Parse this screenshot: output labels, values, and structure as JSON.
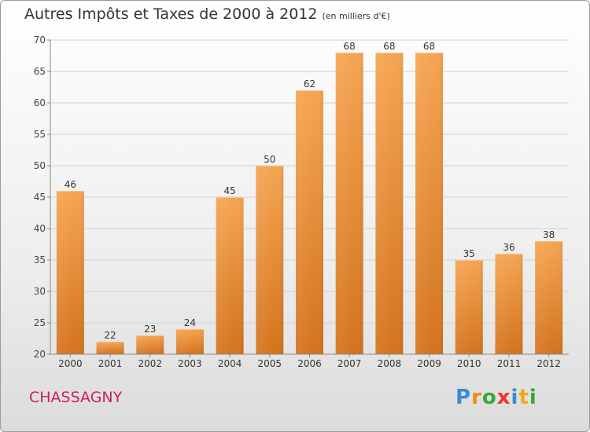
{
  "chart_data": {
    "type": "bar",
    "title": "Autres Impôts et Taxes de 2000 à 2012",
    "subtitle": "(en milliers d'€)",
    "categories": [
      "2000",
      "2001",
      "2002",
      "2003",
      "2004",
      "2005",
      "2006",
      "2007",
      "2008",
      "2009",
      "2010",
      "2011",
      "2012"
    ],
    "values": [
      46,
      22,
      23,
      24,
      45,
      50,
      62,
      68,
      68,
      68,
      35,
      36,
      38
    ],
    "ylim": [
      20,
      70
    ],
    "yticks": [
      20,
      25,
      30,
      35,
      40,
      45,
      50,
      55,
      60,
      65,
      70
    ],
    "grid": true,
    "bar_color_top": "#f5a552",
    "bar_color_bottom": "#d4731c"
  },
  "commune": "CHASSAGNY",
  "brand": {
    "letters": [
      "P",
      "r",
      "o",
      "x",
      "i",
      "t",
      "i"
    ],
    "colors": [
      "#3a8ad8",
      "#f08a1c",
      "#38a838",
      "#e8382c",
      "#3a8ad8",
      "#f0a81c",
      "#38a838"
    ]
  }
}
